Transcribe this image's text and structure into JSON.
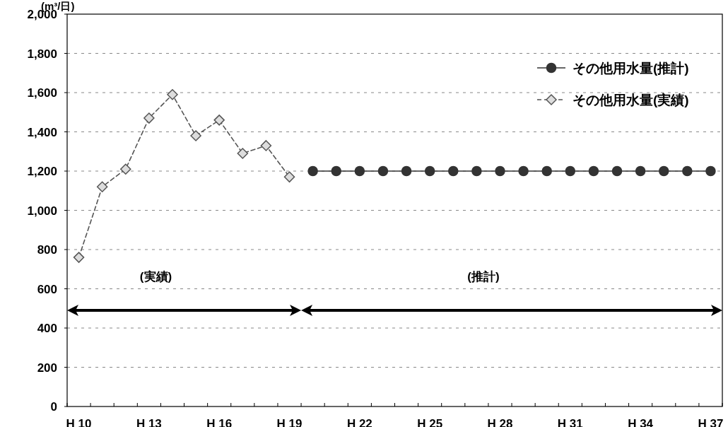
{
  "chart_data": {
    "type": "line",
    "ylabel": "(m³/日)",
    "categories": [
      "H 10",
      null,
      null,
      "H 13",
      null,
      null,
      "H 16",
      null,
      null,
      "H 19",
      null,
      null,
      "H 22",
      null,
      null,
      "H 25",
      null,
      null,
      "H 28",
      null,
      null,
      "H 31",
      null,
      null,
      "H 34",
      null,
      null,
      "H 37"
    ],
    "series": [
      {
        "name": "その他用水量(推計)",
        "color": "#333333",
        "marker": "circle",
        "line_style": "solid",
        "values": [
          null,
          null,
          null,
          null,
          null,
          null,
          null,
          null,
          null,
          null,
          1200,
          1200,
          1200,
          1200,
          1200,
          1200,
          1200,
          1200,
          1200,
          1200,
          1200,
          1200,
          1200,
          1200,
          1200,
          1200,
          1200,
          1200
        ]
      },
      {
        "name": "その他用水量(実績)",
        "color": "#555555",
        "marker": "diamond",
        "line_style": "dashed",
        "values": [
          760,
          1120,
          1210,
          1470,
          1590,
          1380,
          1460,
          1290,
          1330,
          1170,
          null,
          null,
          null,
          null,
          null,
          null,
          null,
          null,
          null,
          null,
          null,
          null,
          null,
          null,
          null,
          null,
          null,
          null
        ]
      }
    ],
    "ylim": [
      0,
      2000
    ],
    "yticks": [
      0,
      200,
      400,
      600,
      800,
      {
        "value": 1000,
        "label": "1,000"
      },
      {
        "value": 1200,
        "label": "1,200"
      },
      {
        "value": 1400,
        "label": "1,400"
      },
      {
        "value": 1600,
        "label": "1,600"
      },
      {
        "value": 1800,
        "label": "1,800"
      },
      {
        "value": 2000,
        "label": "2,000"
      }
    ],
    "grid": "y",
    "legend": "top right",
    "annotations": [
      "(実績)",
      "(推計)"
    ]
  }
}
